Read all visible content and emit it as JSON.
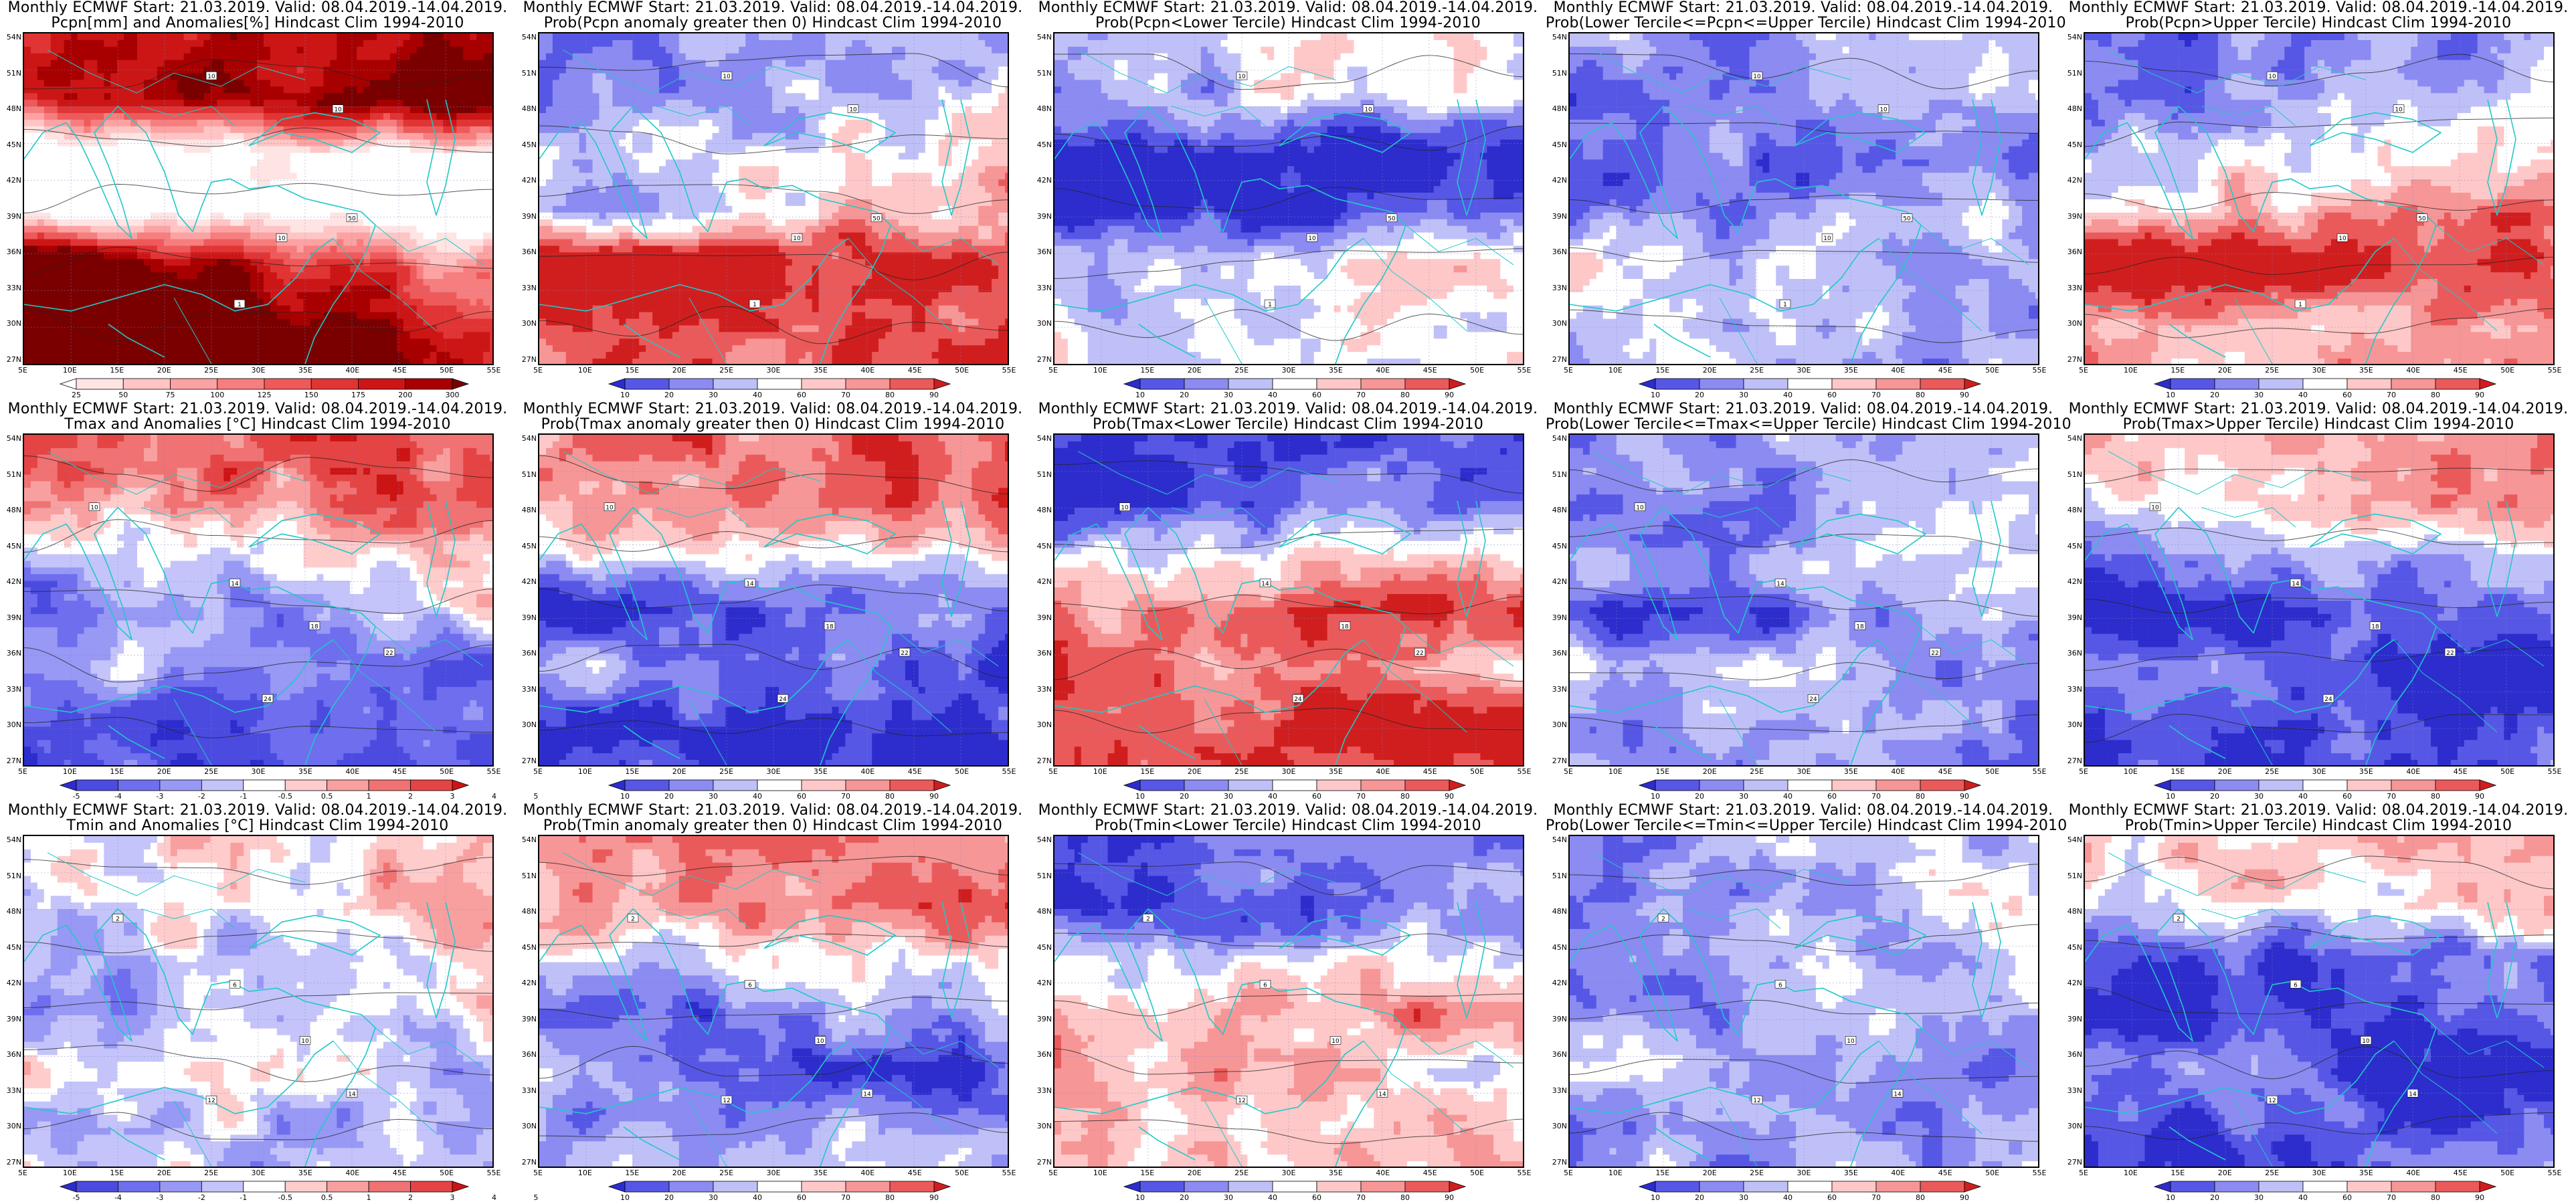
{
  "palettes": {
    "prob": [
      "#2d2dcd",
      "#5757e6",
      "#8b8bf2",
      "#c0c0f8",
      "#ffffff",
      "#ffc8c8",
      "#f79696",
      "#eb5a5a",
      "#d01e1e"
    ],
    "anom": [
      "#2d2dcd",
      "#4b4be0",
      "#6e6eee",
      "#9898f5",
      "#c4c4fa",
      "#ffffff",
      "#ffcccc",
      "#f8a0a0",
      "#f07272",
      "#e44444",
      "#cc1414"
    ],
    "pcpn": [
      "#ffffff",
      "#ffe4e4",
      "#ffc4c4",
      "#fca2a2",
      "#f77e7e",
      "#ee5a5a",
      "#e13434",
      "#cc1616",
      "#a80000",
      "#7a0000"
    ]
  },
  "colorbars": {
    "prob": {
      "labels": [
        "10",
        "20",
        "30",
        "40",
        "60",
        "70",
        "80",
        "90"
      ]
    },
    "anom": {
      "labels": [
        "-5",
        "-4",
        "-3",
        "-2",
        "-1",
        "-0.5",
        "0.5",
        "1",
        "2",
        "3",
        "4",
        "5"
      ]
    },
    "pcpn": {
      "labels": [
        "25",
        "50",
        "75",
        "100",
        "125",
        "150",
        "175",
        "200",
        "300"
      ]
    }
  },
  "axes": {
    "lat_labels": [
      "54N",
      "51N",
      "48N",
      "45N",
      "42N",
      "39N",
      "36N",
      "33N",
      "30N",
      "27N"
    ],
    "lon_labels": [
      "5E",
      "10E",
      "15E",
      "20E",
      "25E",
      "30E",
      "35E",
      "40E",
      "45E",
      "50E",
      "55E"
    ]
  },
  "panels": [
    {
      "title1": "Monthly ECMWF Start: 21.03.2019. Valid: 08.04.2019.-14.04.2019.",
      "title2": "Pcpn[mm] and Anomalies[%] Hindcast Clim 1994-2010",
      "palette": "pcpn",
      "fields": [
        [
          0.55,
          0.08
        ],
        [
          0.75,
          0.35
        ],
        [
          -1.0,
          0.3
        ],
        [
          -1.1,
          0.1
        ],
        [
          0.5,
          -0.9
        ],
        [
          1.2,
          -0.7
        ]
      ],
      "labels": [
        [
          "10",
          0.4,
          0.13
        ],
        [
          "10",
          0.67,
          0.23
        ],
        [
          "50",
          0.7,
          0.56
        ],
        [
          "10",
          0.55,
          0.62
        ],
        [
          "1",
          0.46,
          0.82
        ]
      ]
    },
    {
      "title1": "Monthly ECMWF Start: 21.03.2019. Valid: 08.04.2019.-14.04.2019.",
      "title2": "Prob(Pcpn anomaly greater then 0) Hindcast Clim 1994-2010",
      "palette": "prob",
      "fields": [
        [
          -0.45,
          0.1
        ],
        [
          -0.3,
          0.3
        ],
        [
          0.0,
          0.15
        ],
        [
          0.0,
          0.5
        ],
        [
          1.0,
          -0.3
        ],
        [
          0.7,
          0.1
        ]
      ],
      "labels": [
        [
          "10",
          0.4,
          0.13
        ],
        [
          "10",
          0.67,
          0.23
        ],
        [
          "50",
          0.72,
          0.56
        ],
        [
          "10",
          0.55,
          0.62
        ],
        [
          "1",
          0.46,
          0.82
        ]
      ]
    },
    {
      "title1": "Monthly ECMWF Start: 21.03.2019. Valid: 08.04.2019.-14.04.2019.",
      "title2": "Prob(Pcpn<Lower Tercile) Hindcast Clim 1994-2010",
      "palette": "prob",
      "fields": [
        [
          -0.1,
          0.05
        ],
        [
          -0.2,
          0.3
        ],
        [
          -0.95,
          0.05
        ],
        [
          -0.9,
          0.3
        ],
        [
          0.0,
          0.2
        ],
        [
          0.0,
          0.0
        ]
      ],
      "labels": [
        [
          "10",
          0.4,
          0.13
        ],
        [
          "10",
          0.67,
          0.23
        ],
        [
          "50",
          0.72,
          0.56
        ],
        [
          "10",
          0.55,
          0.62
        ],
        [
          "1",
          0.46,
          0.82
        ]
      ]
    },
    {
      "title1": "Monthly ECMWF Start: 21.03.2019. Valid: 08.04.2019.-14.04.2019.",
      "title2": "Prob(Lower Tercile<=Pcpn<=Upper Tercile) Hindcast Clim 1994-2010",
      "palette": "prob",
      "fields": [
        [
          -0.3,
          0.15
        ],
        [
          -0.45,
          0.35
        ],
        [
          -0.55,
          0.05
        ],
        [
          -0.45,
          0.2
        ],
        [
          -0.2,
          -0.3
        ],
        [
          -0.3,
          0.0
        ]
      ],
      "labels": [
        [
          "10",
          0.4,
          0.13
        ],
        [
          "10",
          0.67,
          0.23
        ],
        [
          "50",
          0.72,
          0.56
        ],
        [
          "10",
          0.55,
          0.62
        ],
        [
          "1",
          0.46,
          0.82
        ]
      ]
    },
    {
      "title1": "Monthly ECMWF Start: 21.03.2019. Valid: 08.04.2019.-14.04.2019.",
      "title2": "Prob(Pcpn>Upper Tercile) Hindcast Clim 1994-2010",
      "palette": "prob",
      "fields": [
        [
          -0.5,
          0.1
        ],
        [
          -0.3,
          0.3
        ],
        [
          0.05,
          0.15
        ],
        [
          0.3,
          0.3
        ],
        [
          0.95,
          -0.3
        ],
        [
          0.35,
          0.0
        ]
      ],
      "labels": [
        [
          "10",
          0.4,
          0.13
        ],
        [
          "10",
          0.67,
          0.23
        ],
        [
          "50",
          0.72,
          0.56
        ],
        [
          "10",
          0.55,
          0.62
        ],
        [
          "1",
          0.46,
          0.82
        ]
      ]
    },
    {
      "title1": "Monthly ECMWF Start: 21.03.2019. Valid: 08.04.2019.-14.04.2019.",
      "title2": "Tmax and Anomalies [°C] Hindcast Clim 1994-2010",
      "palette": "anom",
      "fields": [
        [
          0.6,
          0.1
        ],
        [
          0.5,
          0.3
        ],
        [
          0.0,
          0.1
        ],
        [
          -0.3,
          0.3
        ],
        [
          -0.4,
          -0.3
        ],
        [
          -0.6,
          0.1
        ]
      ],
      "labels": [
        [
          "10",
          0.15,
          0.22
        ],
        [
          "14",
          0.45,
          0.45
        ],
        [
          "18",
          0.62,
          0.58
        ],
        [
          "22",
          0.78,
          0.66
        ],
        [
          "24",
          0.52,
          0.8
        ]
      ]
    },
    {
      "title1": "Monthly ECMWF Start: 21.03.2019. Valid: 08.04.2019.-14.04.2019.",
      "title2": "Prob(Tmax anomaly greater then 0) Hindcast Clim 1994-2010",
      "palette": "prob",
      "fields": [
        [
          0.6,
          0.1
        ],
        [
          0.55,
          0.3
        ],
        [
          0.0,
          0.1
        ],
        [
          -0.7,
          0.3
        ],
        [
          -0.5,
          -0.3
        ],
        [
          -0.8,
          0.1
        ]
      ],
      "labels": [
        [
          "10",
          0.15,
          0.22
        ],
        [
          "14",
          0.45,
          0.45
        ],
        [
          "18",
          0.62,
          0.58
        ],
        [
          "22",
          0.78,
          0.66
        ],
        [
          "24",
          0.52,
          0.8
        ]
      ]
    },
    {
      "title1": "Monthly ECMWF Start: 21.03.2019. Valid: 08.04.2019.-14.04.2019.",
      "title2": "Prob(Tmax<Lower Tercile) Hindcast Clim 1994-2010",
      "palette": "prob",
      "fields": [
        [
          -0.75,
          0.1
        ],
        [
          -0.7,
          0.3
        ],
        [
          0.0,
          0.1
        ],
        [
          0.6,
          0.3
        ],
        [
          0.45,
          -0.3
        ],
        [
          0.85,
          0.15
        ]
      ],
      "labels": [
        [
          "10",
          0.15,
          0.22
        ],
        [
          "14",
          0.45,
          0.45
        ],
        [
          "18",
          0.62,
          0.58
        ],
        [
          "22",
          0.78,
          0.66
        ],
        [
          "24",
          0.52,
          0.8
        ]
      ]
    },
    {
      "title1": "Monthly ECMWF Start: 21.03.2019. Valid: 08.04.2019.-14.04.2019.",
      "title2": "Prob(Lower Tercile<=Tmax<=Upper Tercile) Hindcast Clim 1994-2010",
      "palette": "prob",
      "fields": [
        [
          -0.35,
          0.15
        ],
        [
          -0.4,
          0.3
        ],
        [
          -0.3,
          0.1
        ],
        [
          -0.55,
          0.3
        ],
        [
          -0.3,
          -0.3
        ],
        [
          -0.45,
          0.0
        ]
      ],
      "labels": [
        [
          "10",
          0.15,
          0.22
        ],
        [
          "14",
          0.45,
          0.45
        ],
        [
          "18",
          0.62,
          0.58
        ],
        [
          "22",
          0.78,
          0.66
        ],
        [
          "24",
          0.52,
          0.8
        ]
      ]
    },
    {
      "title1": "Monthly ECMWF Start: 21.03.2019. Valid: 08.04.2019.-14.04.2019.",
      "title2": "Prob(Tmax>Upper Tercile) Hindcast Clim 1994-2010",
      "palette": "prob",
      "fields": [
        [
          0.35,
          0.1
        ],
        [
          0.25,
          0.3
        ],
        [
          -0.4,
          0.1
        ],
        [
          -0.85,
          0.3
        ],
        [
          -0.6,
          -0.3
        ],
        [
          -0.8,
          0.1
        ]
      ],
      "labels": [
        [
          "10",
          0.15,
          0.22
        ],
        [
          "14",
          0.45,
          0.45
        ],
        [
          "18",
          0.62,
          0.58
        ],
        [
          "22",
          0.78,
          0.66
        ],
        [
          "24",
          0.52,
          0.8
        ]
      ]
    },
    {
      "title1": "Monthly ECMWF Start: 21.03.2019. Valid: 08.04.2019.-14.04.2019.",
      "title2": "Tmin and Anomalies [°C] Hindcast Clim 1994-2010",
      "palette": "anom",
      "fields": [
        [
          0.05,
          0.1
        ],
        [
          0.1,
          0.3
        ],
        [
          -0.15,
          0.1
        ],
        [
          -0.2,
          0.3
        ],
        [
          -0.1,
          -0.3
        ],
        [
          -0.2,
          0.0
        ]
      ],
      "labels": [
        [
          "2",
          0.2,
          0.25
        ],
        [
          "6",
          0.45,
          0.45
        ],
        [
          "10",
          0.6,
          0.62
        ],
        [
          "14",
          0.7,
          0.78
        ],
        [
          "12",
          0.4,
          0.8
        ]
      ]
    },
    {
      "title1": "Monthly ECMWF Start: 21.03.2019. Valid: 08.04.2019.-14.04.2019.",
      "title2": "Prob(Tmin anomaly greater then 0) Hindcast Clim 1994-2010",
      "palette": "prob",
      "fields": [
        [
          0.5,
          0.1
        ],
        [
          0.6,
          0.3
        ],
        [
          0.0,
          0.1
        ],
        [
          -0.45,
          0.3
        ],
        [
          -0.6,
          -0.3
        ],
        [
          -0.3,
          0.1
        ]
      ],
      "labels": [
        [
          "2",
          0.2,
          0.25
        ],
        [
          "6",
          0.45,
          0.45
        ],
        [
          "10",
          0.6,
          0.62
        ],
        [
          "14",
          0.7,
          0.78
        ],
        [
          "12",
          0.4,
          0.8
        ]
      ]
    },
    {
      "title1": "Monthly ECMWF Start: 21.03.2019. Valid: 08.04.2019.-14.04.2019.",
      "title2": "Prob(Tmin<Lower Tercile) Hindcast Clim 1994-2010",
      "palette": "prob",
      "fields": [
        [
          -0.6,
          0.1
        ],
        [
          -0.7,
          0.3
        ],
        [
          0.0,
          0.1
        ],
        [
          0.4,
          0.3
        ],
        [
          0.2,
          -0.3
        ],
        [
          0.2,
          0.1
        ]
      ],
      "labels": [
        [
          "2",
          0.2,
          0.25
        ],
        [
          "6",
          0.45,
          0.45
        ],
        [
          "10",
          0.6,
          0.62
        ],
        [
          "14",
          0.7,
          0.78
        ],
        [
          "12",
          0.4,
          0.8
        ]
      ]
    },
    {
      "title1": "Monthly ECMWF Start: 21.03.2019. Valid: 08.04.2019.-14.04.2019.",
      "title2": "Prob(Lower Tercile<=Tmin<=Upper Tercile) Hindcast Clim 1994-2010",
      "palette": "prob",
      "fields": [
        [
          -0.25,
          0.15
        ],
        [
          -0.3,
          0.3
        ],
        [
          -0.35,
          0.1
        ],
        [
          -0.3,
          0.3
        ],
        [
          -0.3,
          -0.3
        ],
        [
          -0.35,
          0.0
        ]
      ],
      "labels": [
        [
          "2",
          0.2,
          0.25
        ],
        [
          "6",
          0.45,
          0.45
        ],
        [
          "10",
          0.6,
          0.62
        ],
        [
          "14",
          0.7,
          0.78
        ],
        [
          "12",
          0.4,
          0.8
        ]
      ]
    },
    {
      "title1": "Monthly ECMWF Start: 21.03.2019. Valid: 08.04.2019.-14.04.2019.",
      "title2": "Prob(Tmin>Upper Tercile) Hindcast Clim 1994-2010",
      "palette": "prob",
      "fields": [
        [
          0.2,
          0.1
        ],
        [
          0.1,
          0.3
        ],
        [
          -0.7,
          0.1
        ],
        [
          -0.75,
          0.3
        ],
        [
          -0.6,
          -0.3
        ],
        [
          -0.7,
          0.1
        ]
      ],
      "labels": [
        [
          "2",
          0.2,
          0.25
        ],
        [
          "6",
          0.45,
          0.45
        ],
        [
          "10",
          0.6,
          0.62
        ],
        [
          "14",
          0.7,
          0.78
        ],
        [
          "12",
          0.4,
          0.8
        ]
      ]
    }
  ]
}
